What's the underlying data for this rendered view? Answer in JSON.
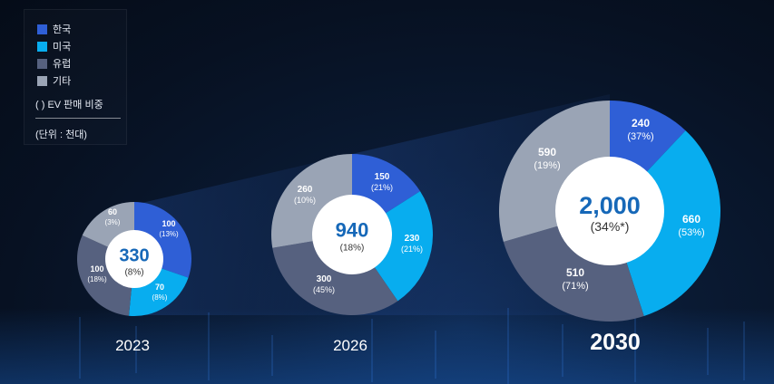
{
  "legend": {
    "items": [
      {
        "label": "한국",
        "color": "#2f5fd6"
      },
      {
        "label": "미국",
        "color": "#08adef"
      },
      {
        "label": "유럽",
        "color": "#56617f"
      },
      {
        "label": "기타",
        "color": "#9aa4b5"
      }
    ],
    "note": "(  ) EV 판매 비중",
    "unit": "(단위 : 천대)"
  },
  "chart_data": {
    "type": "pie",
    "series_names": [
      "한국",
      "미국",
      "유럽",
      "기타"
    ],
    "colors": [
      "#2f5fd6",
      "#08adef",
      "#56617f",
      "#9aa4b5"
    ],
    "charts": [
      {
        "year": "2023",
        "total": "330",
        "share": "(8%)",
        "values": [
          100,
          70,
          100,
          60
        ],
        "value_labels": [
          "100",
          "70",
          "100",
          "60"
        ],
        "share_labels": [
          "(13%)",
          "(8%)",
          "(18%)",
          "(3%)"
        ]
      },
      {
        "year": "2026",
        "total": "940",
        "share": "(18%)",
        "values": [
          150,
          230,
          300,
          260
        ],
        "value_labels": [
          "150",
          "230",
          "300",
          "260"
        ],
        "share_labels": [
          "(21%)",
          "(21%)",
          "(45%)",
          "(10%)"
        ]
      },
      {
        "year": "2030",
        "total": "2,000",
        "share": "(34%*)",
        "values": [
          240,
          660,
          510,
          590
        ],
        "value_labels": [
          "240",
          "660",
          "510",
          "590"
        ],
        "share_labels": [
          "(37%)",
          "(53%)",
          "(71%)",
          "(19%)"
        ]
      }
    ]
  }
}
